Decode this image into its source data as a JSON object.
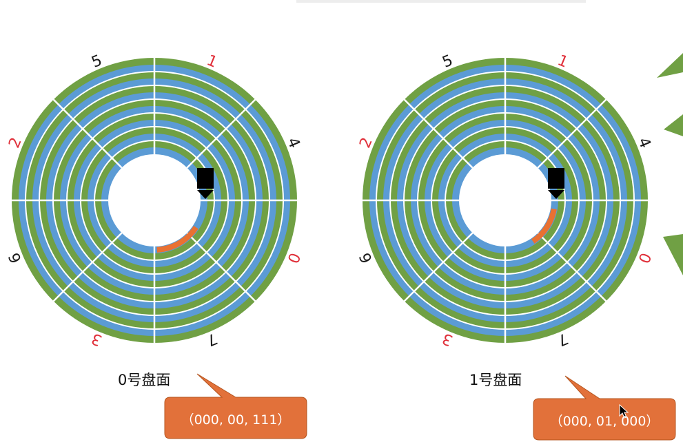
{
  "colors": {
    "blue": "#5b9bd5",
    "green": "#70a044",
    "sector_highlight": "#e97132",
    "callout_fill": "#e2713a",
    "callout_stroke": "#b4551f",
    "label_red": "#e0303a",
    "label_black": "#1a1a1a",
    "head_black": "#000000",
    "right_shape_green": "#70a044"
  },
  "icons": [
    "read-write-head-icon",
    "mouse-cursor-icon"
  ],
  "disks": [
    {
      "title": "0号盘面",
      "address": "（000, 00, 111）",
      "highlight_sector": "7",
      "highlight_track": "innermost",
      "sector_labels": [
        {
          "text": "1",
          "color": "red"
        },
        {
          "text": "4",
          "color": "black"
        },
        {
          "text": "0",
          "color": "red"
        },
        {
          "text": "7",
          "color": "black"
        },
        {
          "text": "3",
          "color": "red"
        },
        {
          "text": "6",
          "color": "black"
        },
        {
          "text": "2",
          "color": "red"
        },
        {
          "text": "5",
          "color": "black"
        }
      ]
    },
    {
      "title": "1号盘面",
      "address": "（000, 01, 000）",
      "highlight_sector": "0",
      "highlight_track": "innermost",
      "sector_labels": [
        {
          "text": "1",
          "color": "red"
        },
        {
          "text": "4",
          "color": "black"
        },
        {
          "text": "0",
          "color": "red"
        },
        {
          "text": "7",
          "color": "black"
        },
        {
          "text": "3",
          "color": "red"
        },
        {
          "text": "6",
          "color": "black"
        },
        {
          "text": "2",
          "color": "red"
        },
        {
          "text": "5",
          "color": "black"
        }
      ]
    }
  ]
}
